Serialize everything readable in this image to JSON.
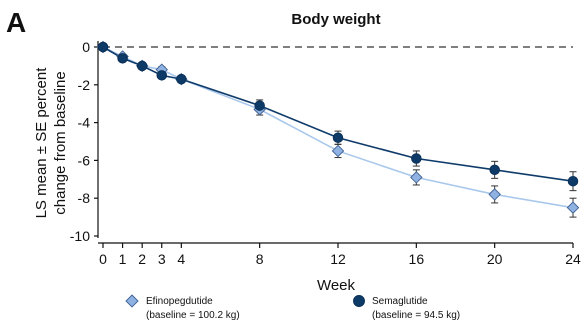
{
  "panel_label": "A",
  "chart_data": {
    "type": "line",
    "title": "Body weight",
    "xlabel": "Week",
    "ylabel_lines": [
      "LS mean ± SE percent",
      "change from baseline"
    ],
    "x": [
      0,
      1,
      2,
      3,
      4,
      8,
      12,
      16,
      20,
      24
    ],
    "x_ticks": [
      0,
      1,
      2,
      3,
      4,
      8,
      12,
      16,
      20,
      24
    ],
    "y_ticks": [
      0,
      -2,
      -4,
      -6,
      -8,
      -10
    ],
    "ylim": [
      -10,
      0
    ],
    "xlim": [
      0,
      24
    ],
    "reference_line": {
      "y": 0,
      "style": "dashed"
    },
    "series": [
      {
        "name": "Efinopegdutide",
        "baseline": "(baseline = 100.2 kg)",
        "marker": "diamond",
        "line_color": "#a9c8ec",
        "marker_color": "#8fb2e3",
        "marker_stroke": "#3d5f8f",
        "values": [
          0,
          -0.5,
          -1.0,
          -1.2,
          -1.7,
          -3.3,
          -5.5,
          -6.9,
          -7.8,
          -8.5
        ],
        "errors": [
          0,
          0.1,
          0.1,
          0.15,
          0.15,
          0.3,
          0.35,
          0.4,
          0.45,
          0.5
        ]
      },
      {
        "name": "Semaglutide",
        "baseline": "(baseline = 94.5 kg)",
        "marker": "circle",
        "line_color": "#0f3b6b",
        "marker_color": "#0d3a66",
        "marker_stroke": "#0b2f55",
        "values": [
          0,
          -0.6,
          -1.0,
          -1.5,
          -1.7,
          -3.1,
          -4.8,
          -5.9,
          -6.5,
          -7.1
        ],
        "errors": [
          0,
          0.1,
          0.1,
          0.15,
          0.15,
          0.3,
          0.35,
          0.4,
          0.45,
          0.5
        ]
      }
    ],
    "legend_position": "bottom"
  }
}
